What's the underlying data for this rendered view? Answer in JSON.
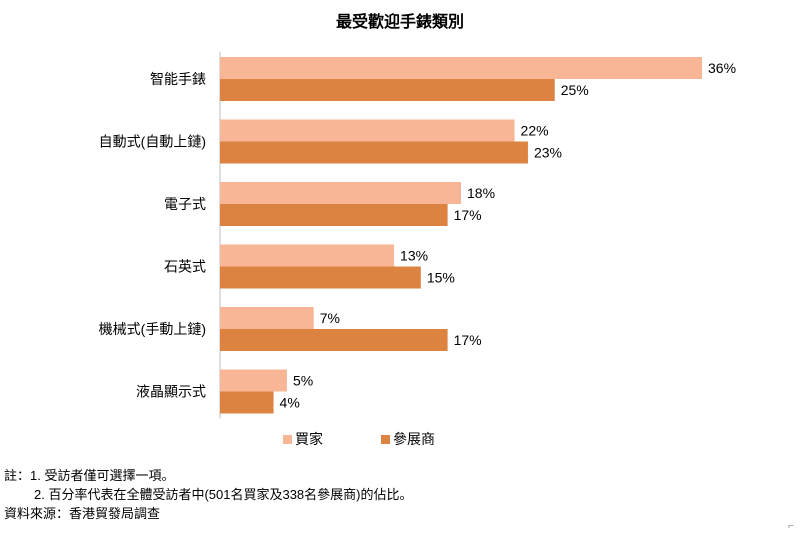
{
  "chart_data": {
    "type": "bar",
    "orientation": "horizontal",
    "title": "最受歡迎手錶類別",
    "categories": [
      "智能手錶",
      "自動式(自動上鏈)",
      "電子式",
      "石英式",
      "機械式(手動上鏈)",
      "液晶顯示式"
    ],
    "series": [
      {
        "name": "買家",
        "color": "#F9B696",
        "values": [
          36,
          22,
          18,
          13,
          7,
          5
        ]
      },
      {
        "name": "參展商",
        "color": "#DD8342",
        "values": [
          25,
          23,
          17,
          15,
          17,
          4
        ]
      }
    ],
    "value_format": "%",
    "xlim": [
      0,
      36
    ],
    "grid": false,
    "legend_position": "bottom"
  },
  "notes": {
    "line1": "註：1. 受訪者僅可選擇一項。",
    "line2": "2. 百分率代表在全體受訪者中(501名買家及338名參展商)的佔比。",
    "source": "資料來源：香港貿發局調查"
  },
  "corner_mark": "⌐"
}
